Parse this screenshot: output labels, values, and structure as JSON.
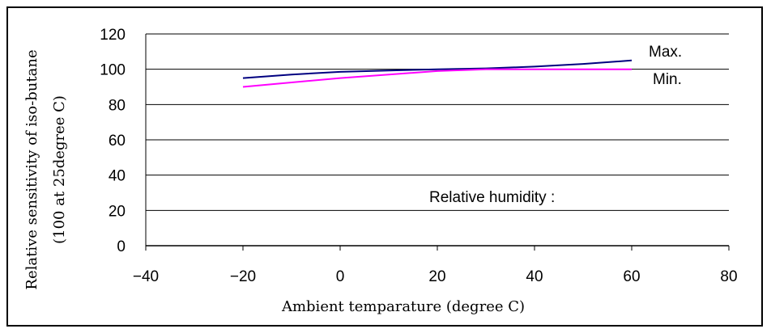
{
  "chart_data": {
    "type": "line",
    "xlabel": "Ambient temparature (degree C)",
    "ylabel": "Relative sensitivity of iso-butane",
    "ylabel2": "(100 at 25degree C)",
    "xlim": [
      -40,
      80
    ],
    "ylim": [
      0,
      120
    ],
    "x_ticks": [
      "−40",
      "−20",
      "0",
      "20",
      "40",
      "60",
      "80"
    ],
    "y_ticks": [
      "0",
      "20",
      "40",
      "60",
      "80",
      "100",
      "120"
    ],
    "grid": "horizontal",
    "annotation": "Relative humidity :",
    "colors": {
      "max": "#000080",
      "min": "#ff00ff"
    },
    "series": [
      {
        "name": "Max.",
        "x": [
          -20,
          -10,
          0,
          10,
          20,
          30,
          40,
          50,
          60
        ],
        "y": [
          95,
          97,
          98.5,
          99.3,
          100,
          100.5,
          101.5,
          103,
          105
        ]
      },
      {
        "name": "Min.",
        "x": [
          -20,
          -10,
          0,
          10,
          20,
          30,
          40,
          50,
          60
        ],
        "y": [
          90,
          92.5,
          95,
          97,
          99,
          100,
          100,
          100,
          100
        ]
      }
    ]
  }
}
